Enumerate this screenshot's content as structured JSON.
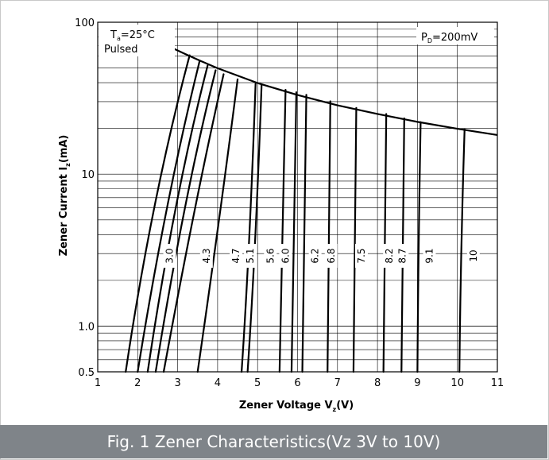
{
  "caption": "Fig. 1 Zener Characteristics(Vz 3V to 10V)",
  "chart_data": {
    "type": "line",
    "title": "",
    "xlabel": "Zener Voltage V_z(V)",
    "ylabel": "Zener Current I_z(mA)",
    "xlabel_parts": {
      "main": "Zener Voltage  V",
      "sub": "z",
      "end": "(V)"
    },
    "ylabel_parts": {
      "main": "Zener Current  I",
      "sub": "z",
      "end": "(mA)"
    },
    "xlim": [
      1,
      11
    ],
    "ylim": [
      0.5,
      100
    ],
    "yscale": "log",
    "grid": true,
    "x_ticks": [
      "1",
      "2",
      "3",
      "4",
      "5",
      "6",
      "7",
      "8",
      "9",
      "10",
      "11"
    ],
    "y_ticks": [
      {
        "value": 0.5,
        "label": "0.5"
      },
      {
        "value": 1,
        "label": "1.0"
      },
      {
        "value": 10,
        "label": "10"
      },
      {
        "value": 100,
        "label": "100"
      }
    ],
    "annotations": {
      "temp": {
        "t": "T",
        "sub": "a",
        "rest": "=25°C"
      },
      "pulsed": "Pulsed",
      "power": {
        "p": "P",
        "sub": "D",
        "rest": "=200mV"
      }
    },
    "power_limit": {
      "x": [
        3.8,
        4.0,
        5.0,
        6.0,
        7.0,
        8.0,
        9.0,
        10.0,
        11.0
      ],
      "y": [
        66,
        49.8,
        39.8,
        33.2,
        28.4,
        24.9,
        22.1,
        19.9,
        18.1
      ]
    },
    "series": [
      {
        "name": "3.0",
        "vz": 1.7,
        "label_x": 2.8,
        "points": [
          [
            1.7,
            0.5
          ],
          [
            2.35,
            7.0
          ],
          [
            3.3,
            60.6
          ]
        ]
      },
      {
        "name": "",
        "vz": 2.0,
        "label_x": null,
        "points": [
          [
            2.0,
            0.5
          ],
          [
            2.7,
            7.0
          ],
          [
            3.55,
            55.6
          ]
        ]
      },
      {
        "name": "",
        "vz": 2.25,
        "label_x": null,
        "points": [
          [
            2.25,
            0.5
          ],
          [
            2.9,
            7.0
          ],
          [
            3.75,
            51.9
          ]
        ]
      },
      {
        "name": "",
        "vz": 2.45,
        "label_x": null,
        "points": [
          [
            2.45,
            0.5
          ],
          [
            3.15,
            7.0
          ],
          [
            3.95,
            48.3
          ]
        ]
      },
      {
        "name": "",
        "vz": 2.65,
        "label_x": null,
        "points": [
          [
            2.65,
            0.5
          ],
          [
            3.45,
            7.0
          ],
          [
            4.15,
            45.5
          ]
        ]
      },
      {
        "name": "4.3",
        "vz": 3.5,
        "label_x": 3.72,
        "points": [
          [
            3.5,
            0.5
          ],
          [
            4.05,
            5.0
          ],
          [
            4.5,
            42.1
          ]
        ]
      },
      {
        "name": "4.7",
        "vz": 4.6,
        "label_x": 4.46,
        "points": [
          [
            4.6,
            0.5
          ],
          [
            4.8,
            3.0
          ],
          [
            4.95,
            39.5
          ]
        ]
      },
      {
        "name": "5.1",
        "vz": 4.75,
        "label_x": 4.82,
        "points": [
          [
            4.75,
            0.5
          ],
          [
            4.95,
            3.0
          ],
          [
            5.1,
            38.5
          ]
        ]
      },
      {
        "name": "5.6",
        "vz": 5.55,
        "label_x": 5.32,
        "points": [
          [
            5.55,
            0.5
          ],
          [
            5.62,
            3.0
          ],
          [
            5.7,
            35.9
          ]
        ]
      },
      {
        "name": "6.0",
        "vz": 5.85,
        "label_x": 5.7,
        "points": [
          [
            5.85,
            0.5
          ],
          [
            5.9,
            3.0
          ],
          [
            5.97,
            34.6
          ]
        ]
      },
      {
        "name": "6.2",
        "vz": 6.12,
        "label_x": 6.44,
        "points": [
          [
            6.12,
            0.5
          ],
          [
            6.16,
            3.0
          ],
          [
            6.22,
            33.3
          ]
        ]
      },
      {
        "name": "6.8",
        "vz": 6.75,
        "label_x": 6.84,
        "points": [
          [
            6.75,
            0.5
          ],
          [
            6.78,
            3.0
          ],
          [
            6.82,
            30.2
          ]
        ]
      },
      {
        "name": "7.5",
        "vz": 7.4,
        "label_x": 7.6,
        "points": [
          [
            7.4,
            0.5
          ],
          [
            7.43,
            3.0
          ],
          [
            7.47,
            27.3
          ]
        ]
      },
      {
        "name": "8.2",
        "vz": 8.15,
        "label_x": 8.3,
        "points": [
          [
            8.15,
            0.5
          ],
          [
            8.18,
            3.0
          ],
          [
            8.22,
            24.9
          ]
        ]
      },
      {
        "name": "8.7",
        "vz": 8.6,
        "label_x": 8.62,
        "points": [
          [
            8.6,
            0.5
          ],
          [
            8.62,
            3.0
          ],
          [
            8.67,
            23.3
          ]
        ]
      },
      {
        "name": "9.1",
        "vz": 9.0,
        "label_x": 9.3,
        "points": [
          [
            9.0,
            0.5
          ],
          [
            9.02,
            3.0
          ],
          [
            9.08,
            22.0
          ]
        ]
      },
      {
        "name": "10",
        "vz": 10.05,
        "label_x": 10.4,
        "points": [
          [
            10.05,
            0.5
          ],
          [
            10.08,
            3.0
          ],
          [
            10.18,
            19.8
          ]
        ]
      }
    ]
  }
}
